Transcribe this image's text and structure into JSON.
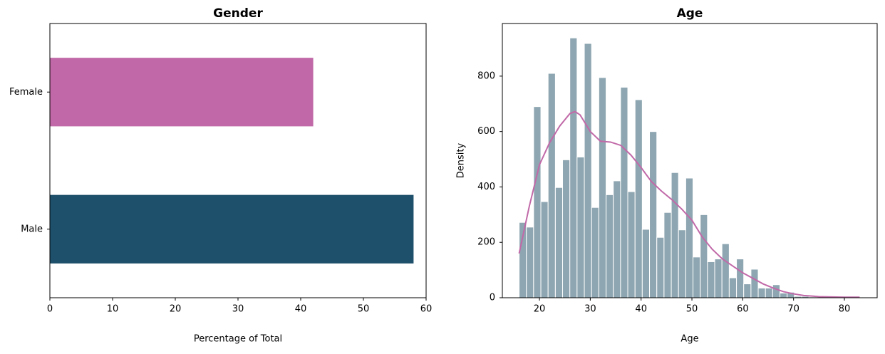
{
  "chart_data": [
    {
      "type": "hbar",
      "title": "Gender",
      "xlabel": "Percentage of Total",
      "categories": [
        "Female",
        "Male"
      ],
      "values": [
        42,
        58
      ],
      "colors": [
        "#c169a8",
        "#1e506b"
      ],
      "xlim": [
        0,
        60
      ],
      "xticks": [
        0,
        10,
        20,
        30,
        40,
        50,
        60
      ]
    },
    {
      "type": "histogram",
      "title": "Age",
      "xlabel": "Age",
      "ylabel": "Density",
      "color": "#8ea6b1",
      "bins": [
        16,
        17.43,
        18.85,
        20.28,
        21.7,
        23.13,
        24.55,
        25.98,
        27.4,
        28.83,
        30.26,
        31.68,
        33.11,
        34.53,
        35.96,
        37.38,
        38.81,
        40.23,
        41.66,
        43.09,
        44.51,
        45.94,
        47.36,
        48.79,
        50.21,
        51.64,
        53.06,
        54.49,
        55.91,
        57.34,
        58.77,
        60.19,
        61.62,
        63.04,
        64.47,
        65.89,
        67.32,
        68.74,
        70.17,
        71.6,
        73.02,
        74.45,
        75.87,
        77.3,
        78.72,
        80.15,
        81.57,
        83.0
      ],
      "counts": [
        272,
        255,
        690,
        347,
        810,
        398,
        498,
        938,
        508,
        918,
        326,
        795,
        372,
        422,
        760,
        383,
        715,
        247,
        600,
        218,
        308,
        452,
        245,
        432,
        147,
        300,
        130,
        140,
        195,
        72,
        140,
        50,
        103,
        35,
        35,
        47,
        17,
        20,
        5,
        5,
        3,
        2,
        1,
        1,
        1,
        1,
        1
      ],
      "kde": {
        "color": "#c169a8",
        "x": [
          16,
          18,
          20,
          22,
          24,
          26,
          27,
          28,
          30,
          32,
          34,
          36,
          38,
          40,
          42,
          44,
          46,
          48,
          50,
          52,
          54,
          56,
          58,
          60,
          62,
          64,
          66,
          68,
          70,
          72,
          75,
          80,
          83
        ],
        "values": [
          160,
          330,
          480,
          560,
          620,
          665,
          672,
          660,
          600,
          565,
          562,
          550,
          515,
          470,
          420,
          385,
          355,
          320,
          280,
          220,
          175,
          140,
          115,
          90,
          70,
          50,
          35,
          22,
          14,
          8,
          4,
          2,
          2
        ]
      },
      "xlim": [
        12.7,
        86.45
      ],
      "xticks": [
        20,
        30,
        40,
        50,
        60,
        70,
        80
      ],
      "ylim": [
        0,
        990
      ],
      "yticks": [
        0,
        200,
        400,
        600,
        800
      ]
    }
  ]
}
